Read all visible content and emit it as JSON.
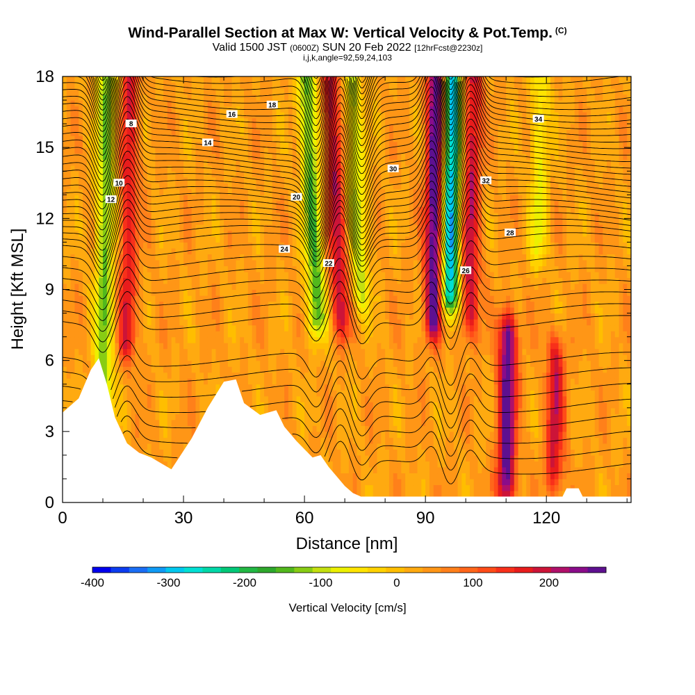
{
  "header": {
    "title": "Wind-Parallel Section at Max W: Vertical Velocity & Pot.Temp.",
    "copyright": "(C)",
    "subtitle_main": "Valid 1500 JST",
    "subtitle_z": "(0600Z)",
    "subtitle_date": "SUN 20 Feb 2022",
    "subtitle_fcst": "[12hrFcst@2230z]",
    "subtitle_indices": "i,j,k,angle=92,59,24,103"
  },
  "chart_data": {
    "type": "heatmap",
    "xlabel": "Distance [nm]",
    "ylabel": "Height [Kft MSL]",
    "xlim": [
      0,
      141
    ],
    "ylim": [
      0,
      18
    ],
    "xticks": [
      0,
      30,
      60,
      90,
      120
    ],
    "xtick_labels": [
      "0",
      "30",
      "60",
      "90",
      "120"
    ],
    "yticks": [
      0,
      3,
      6,
      9,
      12,
      15,
      18
    ],
    "ytick_labels": [
      "0",
      "3",
      "6",
      "9",
      "12",
      "15",
      "18"
    ],
    "colorbar": {
      "label": "Vertical Velocity [cm/s]",
      "ticks": [
        -400,
        -300,
        -200,
        -100,
        0,
        100,
        200
      ],
      "tick_labels": [
        "-400",
        "-300",
        "-200",
        "-100",
        "0",
        "100",
        "200"
      ],
      "range": [
        -400,
        275
      ],
      "colors": [
        "#0000ee",
        "#0c3cf0",
        "#1a6ef5",
        "#0f9af5",
        "#00c8ef",
        "#00e0d4",
        "#00d8a8",
        "#00c878",
        "#22b844",
        "#2ea82c",
        "#52b81c",
        "#88cc14",
        "#c4e010",
        "#ecf000",
        "#ffe400",
        "#ffd200",
        "#ffbe00",
        "#ffaa10",
        "#ff9616",
        "#ff801a",
        "#ff661a",
        "#ff4c18",
        "#f8301a",
        "#e81c1c",
        "#cc1438",
        "#b0106a",
        "#8a0c8a",
        "#5e1090"
      ]
    },
    "theta_contour_labels": [
      "8",
      "10",
      "12",
      "14",
      "16",
      "18",
      "20",
      "22",
      "24",
      "26",
      "28",
      "30",
      "32",
      "34"
    ],
    "terrain": [
      [
        0,
        3.8
      ],
      [
        4,
        4.4
      ],
      [
        7,
        5.6
      ],
      [
        9,
        6.1
      ],
      [
        11,
        5.0
      ],
      [
        13,
        3.6
      ],
      [
        16,
        2.5
      ],
      [
        19,
        2.1
      ],
      [
        22,
        1.9
      ],
      [
        27,
        1.4
      ],
      [
        32,
        2.7
      ],
      [
        36,
        4.0
      ],
      [
        40,
        5.1
      ],
      [
        43,
        5.2
      ],
      [
        45,
        4.2
      ],
      [
        49,
        3.7
      ],
      [
        53,
        3.9
      ],
      [
        55,
        3.2
      ],
      [
        58,
        2.6
      ],
      [
        62,
        1.9
      ],
      [
        64,
        2.0
      ],
      [
        66,
        1.5
      ],
      [
        68,
        1.1
      ],
      [
        70,
        0.7
      ],
      [
        72,
        0.4
      ],
      [
        74,
        0.25
      ],
      [
        100,
        0.25
      ],
      [
        124,
        0.25
      ],
      [
        125,
        0.6
      ],
      [
        128,
        0.6
      ],
      [
        129,
        0.25
      ],
      [
        141,
        0.25
      ]
    ],
    "w_features": [
      {
        "x": 10,
        "z_min": 3.5,
        "z_max": 18,
        "w": -170
      },
      {
        "x": 16,
        "z_min": 7,
        "z_max": 18,
        "w": 140
      },
      {
        "x": 63,
        "z_min": 8,
        "z_max": 18,
        "w": -190
      },
      {
        "x": 69,
        "z_min": 8,
        "z_max": 18,
        "w": 160
      },
      {
        "x": 74,
        "z_min": 9,
        "z_max": 18,
        "w": -130
      },
      {
        "x": 92,
        "z_min": 8,
        "z_max": 18,
        "w": 260
      },
      {
        "x": 96,
        "z_min": 9,
        "z_max": 18,
        "w": -340
      },
      {
        "x": 101,
        "z_min": 8,
        "z_max": 18,
        "w": 160
      },
      {
        "x": 110,
        "z_min": 1,
        "z_max": 7,
        "w": 240
      },
      {
        "x": 122,
        "z_min": 1.5,
        "z_max": 6,
        "w": 150
      },
      {
        "x": 118,
        "z_min": 11,
        "z_max": 18,
        "w": -100
      }
    ]
  }
}
